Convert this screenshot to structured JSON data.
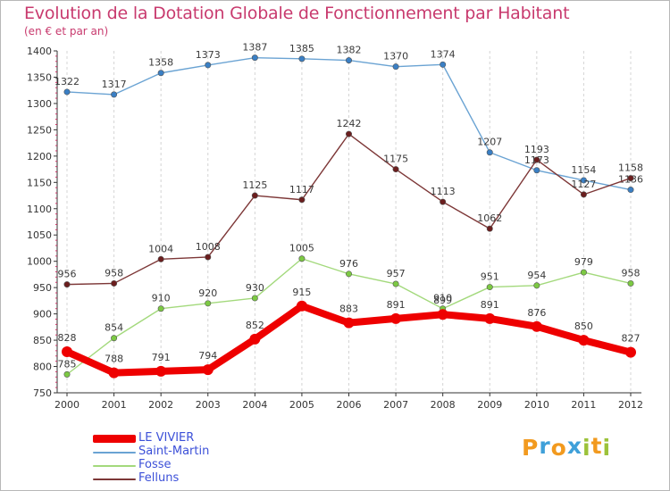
{
  "chart_data": {
    "type": "line",
    "title": "Evolution de la Dotation Globale de Fonctionnement par Habitant",
    "subtitle": "(en € et par an)",
    "xlabel": "",
    "ylabel": "",
    "categories": [
      "2000",
      "2001",
      "2002",
      "2003",
      "2004",
      "2005",
      "2006",
      "2007",
      "2008",
      "2009",
      "2010",
      "2011",
      "2012"
    ],
    "ylim": [
      750,
      1400
    ],
    "yticks": [
      750,
      800,
      850,
      900,
      950,
      1000,
      1050,
      1100,
      1150,
      1200,
      1250,
      1300,
      1350,
      1400
    ],
    "ytick_labels": [
      "750",
      "800",
      "850",
      "900",
      "950",
      "1000",
      "1050",
      "1100",
      "1150",
      "1200",
      "1250",
      "1300",
      "1350",
      "1400"
    ],
    "grid": "vertical",
    "legend": "bottom-left",
    "series": [
      {
        "name": "Saint-Martin",
        "color": "#6aa3d3",
        "marker": "#3a7fc4",
        "width": 1.4,
        "values": [
          1322,
          1317,
          1358,
          1373,
          1387,
          1385,
          1382,
          1370,
          1374,
          1207,
          1173,
          1154,
          1136
        ],
        "labels": [
          "1322",
          "1317",
          "1358",
          "1373",
          "1387",
          "1385",
          "1382",
          "1370",
          "1374",
          "1207",
          "1173",
          "1154",
          "1136"
        ]
      },
      {
        "name": "Felluns",
        "color": "#7d3737",
        "marker": "#6b1e1e",
        "width": 1.4,
        "values": [
          956,
          958,
          1004,
          1008,
          1125,
          1117,
          1242,
          1175,
          1113,
          1062,
          1193,
          1127,
          1158
        ],
        "labels": [
          "956",
          "958",
          "1004",
          "1008",
          "1125",
          "1117",
          "1242",
          "1175",
          "1113",
          "1062",
          "1193",
          "1127",
          "1158"
        ]
      },
      {
        "name": "Fosse",
        "color": "#a3d97c",
        "marker": "#7cc943",
        "width": 1.4,
        "values": [
          785,
          854,
          910,
          920,
          930,
          1005,
          976,
          957,
          910,
          951,
          954,
          979,
          958
        ],
        "labels": [
          "785",
          "854",
          "910",
          "920",
          "930",
          "1005",
          "976",
          "957",
          "910",
          "951",
          "954",
          "979",
          "958"
        ]
      },
      {
        "name": "LE VIVIER",
        "color": "#ee0000",
        "marker": "#ee0000",
        "width": 8,
        "values": [
          828,
          788,
          791,
          794,
          852,
          915,
          883,
          891,
          899,
          891,
          876,
          850,
          827
        ],
        "labels": [
          "828",
          "788",
          "791",
          "794",
          "852",
          "915",
          "883",
          "891",
          "899",
          "891",
          "876",
          "850",
          "827"
        ]
      }
    ],
    "legend_entries": [
      {
        "name": "LE VIVIER",
        "color": "#ee0000",
        "thick": true
      },
      {
        "name": "Saint-Martin",
        "color": "#6aa3d3",
        "thick": false
      },
      {
        "name": "Fosse",
        "color": "#a3d97c",
        "thick": false
      },
      {
        "name": "Felluns",
        "color": "#7d3737",
        "thick": false
      }
    ]
  },
  "logo": {
    "letters": [
      "P",
      "r",
      "o",
      "x",
      "i",
      "t",
      "i"
    ],
    "colors": [
      "#f29a1f",
      "#3fa0d9",
      "#f29a1f",
      "#3fa0d9",
      "#9cc23a",
      "#f29a1f",
      "#9cc23a"
    ]
  }
}
